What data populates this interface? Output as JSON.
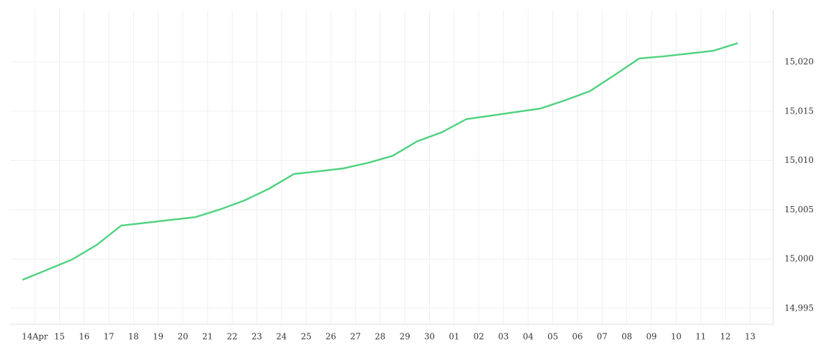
{
  "chart_data": {
    "type": "line",
    "x": [
      -0.5,
      0.5,
      1.5,
      2.5,
      3.5,
      4.5,
      5.5,
      6.5,
      7.5,
      8.5,
      9.5,
      10.5,
      11.5,
      12.5,
      13.5,
      14.5,
      15.5,
      16.5,
      17.5,
      18.5,
      19.5,
      20.5,
      21.5,
      22.5,
      23.5,
      24.5,
      25.5,
      26.5,
      27.5,
      28.5
    ],
    "series": [
      {
        "color": "#50d27f",
        "values": [
          14997.88,
          14998.9,
          14999.93,
          15001.41,
          15003.39,
          15003.67,
          15003.96,
          15004.24,
          15005.02,
          15005.94,
          15007.14,
          15008.62,
          15008.9,
          15009.19,
          15009.75,
          15010.46,
          15011.94,
          15012.86,
          15014.2,
          15014.55,
          15014.91,
          15015.27,
          15016.11,
          15017.03,
          15018.66,
          15020.35,
          15020.57,
          15020.85,
          15021.13,
          15021.91
        ]
      }
    ],
    "xlim": [
      -0.99,
      29.94
    ],
    "xticks": [
      {
        "value": 0,
        "label": "14Apr"
      },
      {
        "value": 1,
        "label": "15"
      },
      {
        "value": 2,
        "label": "16"
      },
      {
        "value": 3,
        "label": "17"
      },
      {
        "value": 4,
        "label": "18"
      },
      {
        "value": 5,
        "label": "19"
      },
      {
        "value": 6,
        "label": "20"
      },
      {
        "value": 7,
        "label": "21"
      },
      {
        "value": 8,
        "label": "22"
      },
      {
        "value": 9,
        "label": "23"
      },
      {
        "value": 10,
        "label": "24"
      },
      {
        "value": 11,
        "label": "25"
      },
      {
        "value": 12,
        "label": "26"
      },
      {
        "value": 13,
        "label": "27"
      },
      {
        "value": 14,
        "label": "28"
      },
      {
        "value": 15,
        "label": "29"
      },
      {
        "value": 16,
        "label": "30"
      },
      {
        "value": 17,
        "label": "01"
      },
      {
        "value": 18,
        "label": "02"
      },
      {
        "value": 19,
        "label": "03"
      },
      {
        "value": 20,
        "label": "04"
      },
      {
        "value": 21,
        "label": "05"
      },
      {
        "value": 22,
        "label": "06"
      },
      {
        "value": 23,
        "label": "07"
      },
      {
        "value": 24,
        "label": "08"
      },
      {
        "value": 25,
        "label": "09"
      },
      {
        "value": 26,
        "label": "10"
      },
      {
        "value": 27,
        "label": "11"
      },
      {
        "value": 28,
        "label": "12"
      },
      {
        "value": 29,
        "label": "13"
      }
    ],
    "ylim": [
      14993.36,
      15025.3
    ],
    "yticks": [
      {
        "value": 14995,
        "label": "14,995"
      },
      {
        "value": 15000,
        "label": "15,000"
      },
      {
        "value": 15005,
        "label": "15,005"
      },
      {
        "value": 15010,
        "label": "15,010"
      },
      {
        "value": 15015,
        "label": "15,015"
      },
      {
        "value": 15020,
        "label": "15,020"
      }
    ],
    "grid": true
  }
}
